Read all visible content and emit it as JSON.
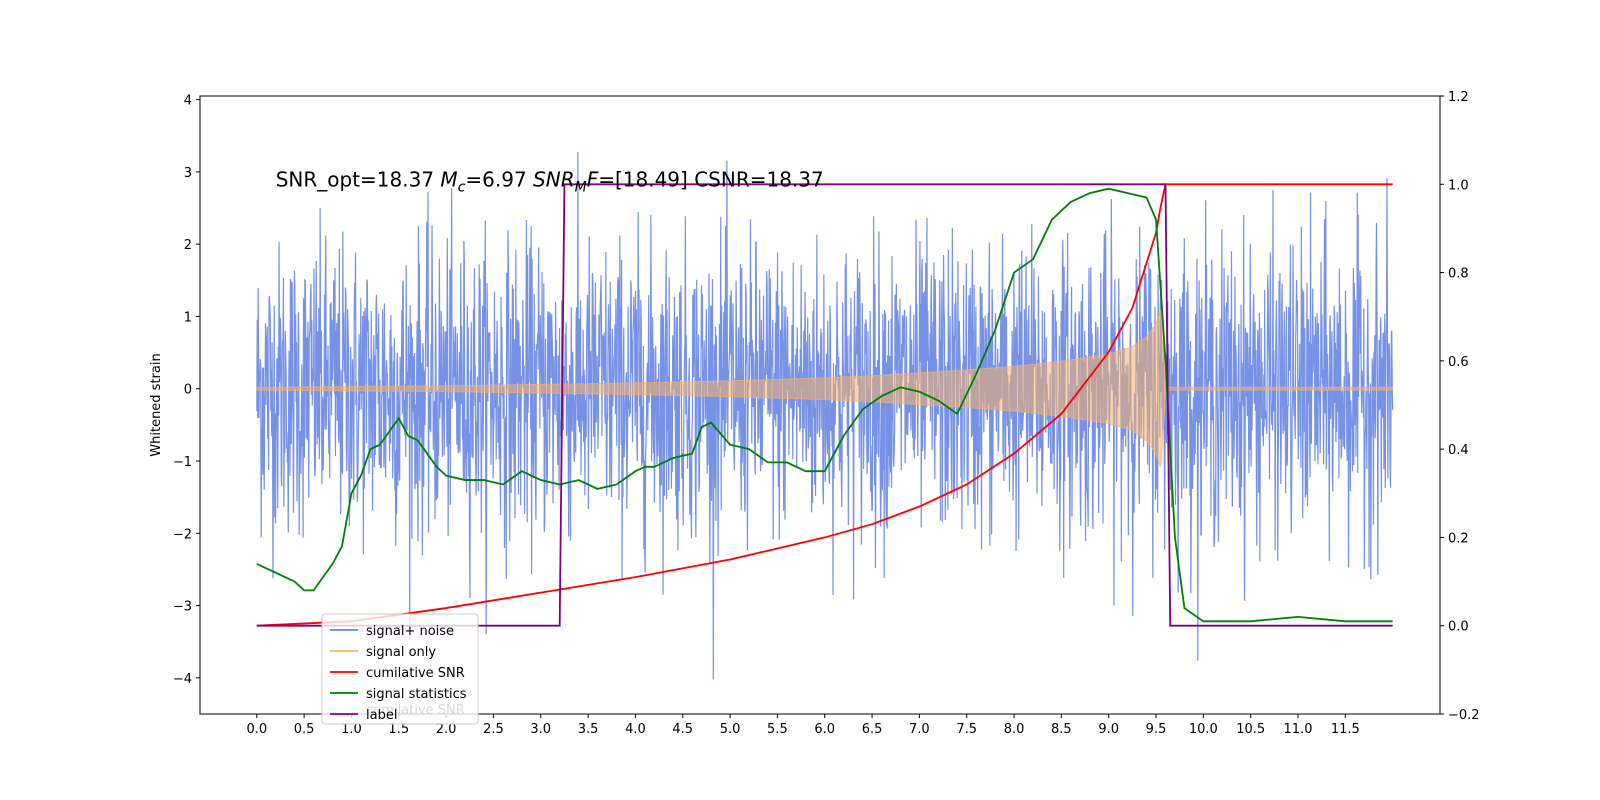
{
  "chart_data": {
    "type": "line",
    "ylabel": "Whitened strain",
    "xlim": [
      -0.6,
      12.5
    ],
    "ylim_left": [
      -4.5,
      4.05
    ],
    "ylim_right": [
      -0.2,
      1.2
    ],
    "x_ticks": [
      0.0,
      0.5,
      1.0,
      1.5,
      2.0,
      2.5,
      3.0,
      3.5,
      4.0,
      4.5,
      5.0,
      5.5,
      6.0,
      6.5,
      7.0,
      7.5,
      8.0,
      8.5,
      9.0,
      9.5,
      10.0,
      10.5,
      11.0,
      11.5
    ],
    "x_tick_labels": [
      "0.0",
      "0.5",
      "1.0",
      "1.5",
      "2.0",
      "2.5",
      "3.0",
      "3.5",
      "4.0",
      "4.5",
      "5.0",
      "5.5",
      "6.0",
      "6.5",
      "7.0",
      "7.5",
      "8.0",
      "8.5",
      "9.0",
      "9.5",
      "10.0",
      "10.5",
      "11.0",
      "11.5"
    ],
    "y_left_ticks": [
      -4,
      -3,
      -2,
      -1,
      0,
      1,
      2,
      3,
      4
    ],
    "y_left_tick_labels": [
      "−4",
      "−3",
      "−2",
      "−1",
      "0",
      "1",
      "2",
      "3",
      "4"
    ],
    "y_right_ticks": [
      -0.2,
      0.0,
      0.2,
      0.4,
      0.6,
      0.8,
      1.0,
      1.2
    ],
    "y_right_tick_labels": [
      "−0.2",
      "0.0",
      "0.2",
      "0.4",
      "0.6",
      "0.8",
      "1.0",
      "1.2"
    ],
    "annotation": {
      "parts": [
        {
          "text": "SNR_opt=18.37 ",
          "style": "normal",
          "shift": "none"
        },
        {
          "text": "M",
          "style": "italic",
          "shift": "none"
        },
        {
          "text": "c",
          "style": "italic",
          "shift": "sub"
        },
        {
          "text": "=6.97    ",
          "style": "normal",
          "shift": "none"
        },
        {
          "text": "SNR",
          "style": "italic",
          "shift": "none"
        },
        {
          "text": "M",
          "style": "italic",
          "shift": "sub"
        },
        {
          "text": "F",
          "style": "italic",
          "shift": "none"
        },
        {
          "text": "=[18.49] CSNR=18.37",
          "style": "normal",
          "shift": "none"
        }
      ],
      "x": 0.2,
      "y": 2.8
    },
    "grid": false,
    "legend_location": "lower-left",
    "series": [
      {
        "name": "signal+ noise",
        "color": "#6a88e4",
        "axis": "left",
        "kind": "noise_band",
        "x_range": [
          0.0,
          12.0
        ],
        "typical_range": [
          -2.1,
          2.1
        ],
        "min": -4.1,
        "max": 3.65
      },
      {
        "name": "signal only",
        "color": "#f5b06a",
        "axis": "left",
        "kind": "envelope",
        "x": [
          0.0,
          1.0,
          2.0,
          3.0,
          4.0,
          5.0,
          6.0,
          6.5,
          7.0,
          7.5,
          8.0,
          8.5,
          9.0,
          9.25,
          9.4,
          9.5,
          9.55,
          9.6,
          9.65,
          12.0
        ],
        "amplitude": [
          0.02,
          0.03,
          0.04,
          0.06,
          0.08,
          0.11,
          0.15,
          0.18,
          0.22,
          0.26,
          0.31,
          0.38,
          0.48,
          0.58,
          0.72,
          0.9,
          1.1,
          0.05,
          0.02,
          0.02
        ]
      },
      {
        "name": "cumilative SNR",
        "color": "#ff0000",
        "axis": "right",
        "x": [
          0.0,
          1.0,
          2.0,
          3.0,
          4.0,
          5.0,
          6.0,
          6.5,
          7.0,
          7.5,
          8.0,
          8.5,
          9.0,
          9.25,
          9.5,
          9.55,
          9.6,
          12.0
        ],
        "y": [
          0.0,
          0.01,
          0.04,
          0.075,
          0.11,
          0.15,
          0.2,
          0.23,
          0.27,
          0.32,
          0.39,
          0.48,
          0.62,
          0.72,
          0.89,
          0.95,
          1.0,
          1.0
        ]
      },
      {
        "name": "signal statistics",
        "color": "#008000",
        "axis": "right",
        "x": [
          0.0,
          0.1,
          0.2,
          0.3,
          0.4,
          0.5,
          0.55,
          0.6,
          0.7,
          0.8,
          0.9,
          1.0,
          1.1,
          1.2,
          1.3,
          1.4,
          1.5,
          1.6,
          1.7,
          1.8,
          1.9,
          2.0,
          2.2,
          2.4,
          2.6,
          2.8,
          3.0,
          3.2,
          3.4,
          3.6,
          3.8,
          4.0,
          4.1,
          4.2,
          4.4,
          4.6,
          4.7,
          4.8,
          5.0,
          5.2,
          5.4,
          5.6,
          5.8,
          6.0,
          6.2,
          6.4,
          6.6,
          6.8,
          7.0,
          7.2,
          7.4,
          7.6,
          7.8,
          8.0,
          8.2,
          8.4,
          8.6,
          8.8,
          9.0,
          9.2,
          9.4,
          9.5,
          9.6,
          9.7,
          9.8,
          10.0,
          10.5,
          11.0,
          11.5,
          12.0
        ],
        "y": [
          0.14,
          0.13,
          0.12,
          0.11,
          0.1,
          0.08,
          0.08,
          0.08,
          0.11,
          0.14,
          0.18,
          0.3,
          0.34,
          0.4,
          0.41,
          0.44,
          0.47,
          0.43,
          0.42,
          0.39,
          0.36,
          0.34,
          0.33,
          0.33,
          0.32,
          0.35,
          0.33,
          0.32,
          0.33,
          0.31,
          0.32,
          0.35,
          0.36,
          0.36,
          0.38,
          0.39,
          0.45,
          0.46,
          0.41,
          0.4,
          0.37,
          0.37,
          0.35,
          0.35,
          0.43,
          0.49,
          0.52,
          0.54,
          0.53,
          0.51,
          0.48,
          0.57,
          0.67,
          0.8,
          0.83,
          0.92,
          0.96,
          0.98,
          0.99,
          0.98,
          0.97,
          0.92,
          0.6,
          0.2,
          0.04,
          0.01,
          0.01,
          0.02,
          0.01,
          0.01
        ]
      },
      {
        "name": "label",
        "color": "#800080",
        "axis": "right",
        "x": [
          0.0,
          3.2,
          3.25,
          9.6,
          9.65,
          12.0
        ],
        "y": [
          0.0,
          0.0,
          1.0,
          1.0,
          0.0,
          0.0
        ]
      }
    ],
    "legend_entries": [
      {
        "label": "signal+ noise",
        "color": "#6a88e4"
      },
      {
        "label": "signal only",
        "color": "#f5b06a"
      },
      {
        "label": "cumilative SNR",
        "color": "#ff0000"
      },
      {
        "label": "signal statistics",
        "color": "#008000"
      },
      {
        "label": "label",
        "color": "#800080"
      }
    ],
    "legend_ghost_text": "cumilative SNR"
  }
}
